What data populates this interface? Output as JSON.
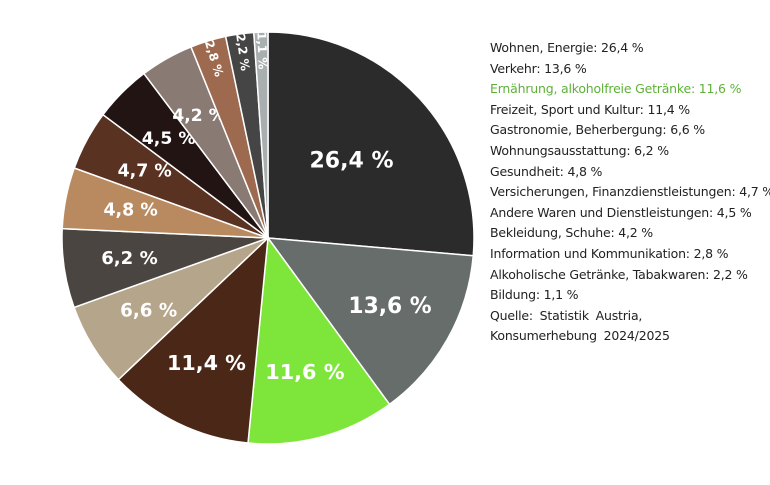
{
  "chart_data": {
    "type": "pie",
    "categories": [
      "Wohnen, Energie: 26,4 %",
      "Verkehr: 13,6 %",
      "Ernährung, alkoholfreie Getränke: 11,6 %",
      "Freizeit, Sport und Kultur: 11,4 %",
      "Gastronomie, Beherbergung: 6,6 %",
      "Wohnungsausstattung: 6,2 %",
      "Gesundheit: 4,8 %",
      "Versicherungen, Finanzdienstleistungen: 4,7 %",
      "Andere Waren und Dienstleistungen: 4,5 %",
      "Bekleidung, Schuhe: 4,2 %",
      "Information und Kommunikation: 2,8 %",
      "Alkoholische Getränke, Tabakwaren: 2,2 %",
      "Bildung: 1,1 %"
    ],
    "values": [
      26.4,
      13.6,
      11.6,
      11.4,
      6.6,
      6.2,
      4.8,
      4.7,
      4.5,
      4.2,
      2.8,
      2.2,
      1.1
    ],
    "value_labels": [
      "26,4 %",
      "13,6 %",
      "11,6 %",
      "11,4 %",
      "6,6 %",
      "6,2 %",
      "4,8 %",
      "4,7 %",
      "4,5 %",
      "4,2 %",
      "2,8 %",
      "2,2 %",
      "1,1 %"
    ],
    "colors": [
      "#2b2b2b",
      "#676d6a",
      "#7ee63a",
      "#4a2716",
      "#b5a58b",
      "#4a4540",
      "#b98a60",
      "#5a3222",
      "#231414",
      "#8a7a74",
      "#9e6a4f",
      "#454545",
      "#a9aeae"
    ],
    "highlight": 2,
    "highlight_color": "#5fb03a",
    "source": "Quelle: Statistik Austria, Konsumerhebung 2024/2025"
  }
}
